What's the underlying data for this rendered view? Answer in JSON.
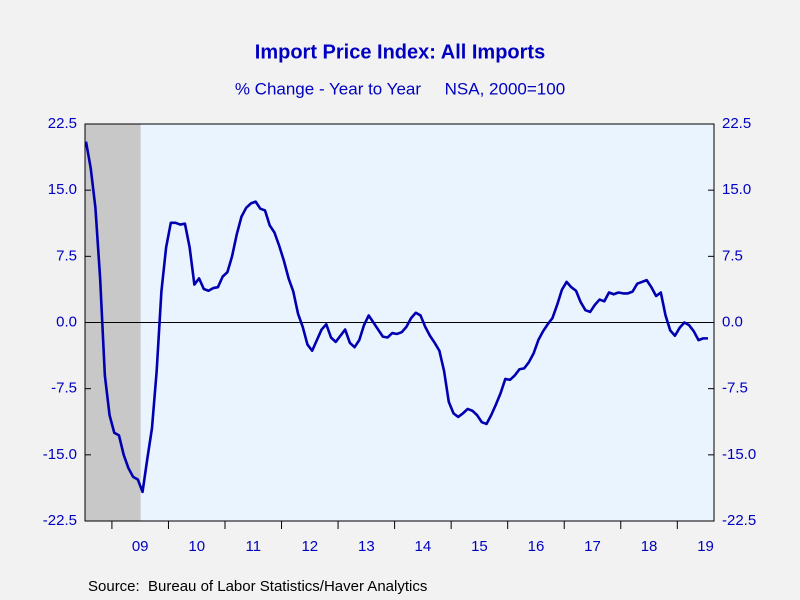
{
  "chart_data": {
    "type": "line",
    "title": "Import Price Index: All Imports",
    "subtitle": "% Change - Year to Year     NSA, 2000=100",
    "source": "Source:  Bureau of Labor Statistics/Haver Analytics",
    "categories": [
      null,
      null,
      null,
      null,
      null,
      null,
      null,
      null,
      null,
      null,
      null,
      null,
      "09",
      null,
      null,
      null,
      null,
      null,
      null,
      null,
      null,
      null,
      null,
      null,
      "10",
      null,
      null,
      null,
      null,
      null,
      null,
      null,
      null,
      null,
      null,
      null,
      "11",
      null,
      null,
      null,
      null,
      null,
      null,
      null,
      null,
      null,
      null,
      null,
      "12",
      null,
      null,
      null,
      null,
      null,
      null,
      null,
      null,
      null,
      null,
      null,
      "13",
      null,
      null,
      null,
      null,
      null,
      null,
      null,
      null,
      null,
      null,
      null,
      "14",
      null,
      null,
      null,
      null,
      null,
      null,
      null,
      null,
      null,
      null,
      null,
      "15",
      null,
      null,
      null,
      null,
      null,
      null,
      null,
      null,
      null,
      null,
      null,
      "16",
      null,
      null,
      null,
      null,
      null,
      null,
      null,
      null,
      null,
      null,
      null,
      "17",
      null,
      null,
      null,
      null,
      null,
      null,
      null,
      null,
      null,
      null,
      null,
      "18",
      null,
      null,
      null,
      null,
      null,
      null,
      null,
      null,
      null,
      null,
      null,
      "19"
    ],
    "series": [
      {
        "name": "Import Price Index: All Imports",
        "color": "#0000b0",
        "values": [
          20.5,
          17.5,
          13,
          5,
          -6,
          -10.5,
          -12.5,
          -12.8,
          -15,
          -16.5,
          -17.5,
          -17.8,
          -19.2,
          -15.5,
          -12,
          -5.5,
          3.5,
          8.5,
          11.3,
          11.3,
          11.1,
          11.2,
          8.5,
          4.3,
          5,
          3.8,
          3.6,
          3.9,
          4,
          5.2,
          5.7,
          7.5,
          10,
          12,
          13,
          13.5,
          13.7,
          12.9,
          12.7,
          11,
          10.2,
          8.7,
          7,
          5,
          3.5,
          1,
          -0.5,
          -2.5,
          -3.2,
          -2,
          -0.8,
          -0.2,
          -1.7,
          -2.2,
          -1.5,
          -0.8,
          -2.3,
          -2.8,
          -2,
          -0.3,
          0.8,
          0,
          -0.8,
          -1.6,
          -1.7,
          -1.2,
          -1.3,
          -1.1,
          -0.5,
          0.5,
          1.1,
          0.8,
          -0.5,
          -1.5,
          -2.3,
          -3.2,
          -5.5,
          -9,
          -10.3,
          -10.7,
          -10.3,
          -9.8,
          -10,
          -10.5,
          -11.3,
          -11.5,
          -10.5,
          -9.3,
          -8,
          -6.4,
          -6.5,
          -6,
          -5.3,
          -5.2,
          -4.5,
          -3.5,
          -2,
          -1,
          -0.2,
          0.5,
          2,
          3.7,
          4.6,
          4,
          3.6,
          2.3,
          1.4,
          1.2,
          2,
          2.6,
          2.4,
          3.4,
          3.2,
          3.4,
          3.3,
          3.3,
          3.5,
          4.4,
          4.6,
          4.8,
          4,
          3,
          3.4,
          0.8,
          -0.9,
          -1.5,
          -0.6,
          0,
          -0.3,
          -1,
          -2,
          -1.8,
          -1.8
        ]
      }
    ],
    "ylim": [
      -22.5,
      22.5
    ],
    "yticks": [
      -22.5,
      {
        "value": -15,
        "label": "-15.0"
      },
      -7.5,
      {
        "value": 0,
        "label": "0.0"
      },
      7.5,
      {
        "value": 15,
        "label": "15.0"
      },
      22.5
    ],
    "shaded_range": [
      0,
      11
    ],
    "zero_line": true
  }
}
